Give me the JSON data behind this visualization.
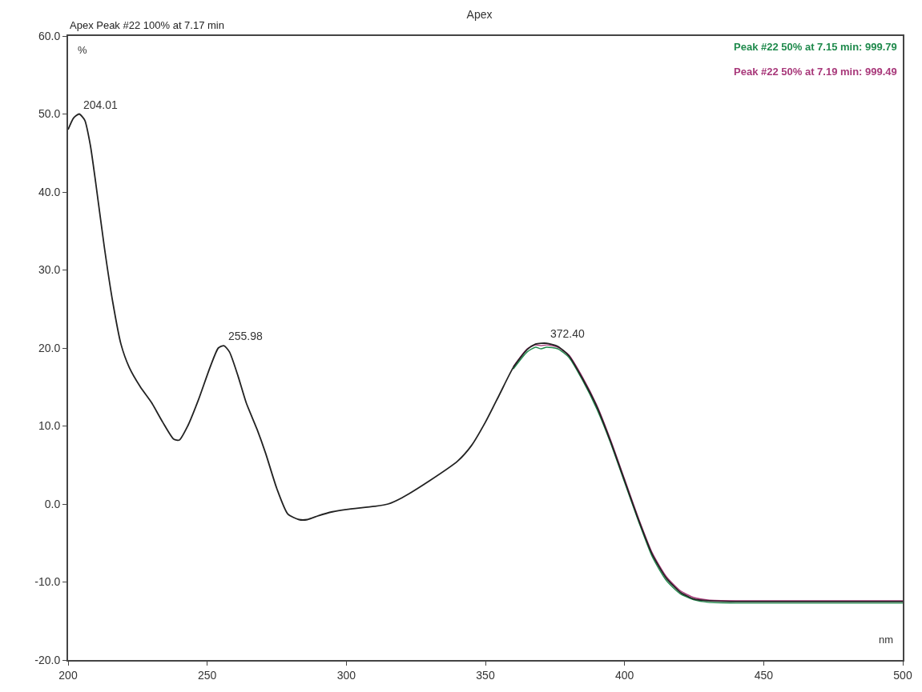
{
  "chart_data": {
    "type": "line",
    "title": "Apex",
    "xlabel": "nm",
    "ylabel": "%",
    "x": [
      200,
      202,
      204,
      206,
      208,
      210,
      213,
      216,
      219,
      222,
      226,
      230,
      234,
      238,
      240,
      243,
      247,
      251,
      254,
      256,
      258,
      261,
      264,
      268,
      271,
      275,
      279,
      283,
      286,
      290,
      295,
      300,
      310,
      315,
      320,
      330,
      340,
      345,
      350,
      355,
      360,
      365,
      368,
      370,
      372,
      376,
      380,
      385,
      390,
      395,
      400,
      405,
      410,
      415,
      420,
      425,
      430,
      440,
      450,
      475,
      500
    ],
    "series": [
      {
        "name": "Apex Peak #22 100% at 7.17 min",
        "color": "#222222",
        "values": [
          48,
          49.5,
          50,
          49.2,
          46,
          41,
          33,
          26,
          20.5,
          17.5,
          15,
          13,
          10.5,
          8.3,
          8.2,
          10,
          13.5,
          17.5,
          20,
          20.3,
          19.5,
          16.5,
          13,
          9.5,
          6.5,
          2,
          -1.3,
          -2,
          -2,
          -1.5,
          -1,
          -0.7,
          -0.3,
          0,
          0.8,
          3,
          5.5,
          7.5,
          10.5,
          14,
          17.5,
          19.8,
          20.5,
          20.6,
          20.6,
          20.2,
          19,
          16,
          12.5,
          8,
          3,
          -2,
          -6.5,
          -9.5,
          -11.3,
          -12.2,
          -12.4,
          -12.5,
          -12.5,
          -12.5,
          -12.5
        ]
      },
      {
        "name": "Peak #22 50% at 7.15 min: 999.79",
        "color": "#1f8a4c",
        "values": [
          null,
          null,
          null,
          null,
          null,
          null,
          null,
          null,
          null,
          null,
          null,
          null,
          null,
          null,
          null,
          null,
          null,
          null,
          null,
          null,
          null,
          null,
          null,
          null,
          null,
          null,
          null,
          null,
          null,
          null,
          null,
          null,
          null,
          null,
          null,
          null,
          null,
          null,
          null,
          null,
          17.3,
          19.5,
          20.1,
          19.9,
          20.1,
          19.9,
          18.8,
          15.8,
          12.2,
          7.8,
          2.8,
          -2.2,
          -6.8,
          -9.8,
          -11.5,
          -12.3,
          -12.6,
          -12.7,
          -12.7,
          -12.7,
          -12.7
        ]
      },
      {
        "name": "Peak #22 50% at 7.19 min: 999.49",
        "color": "#a8387a",
        "values": [
          null,
          null,
          null,
          null,
          null,
          null,
          null,
          null,
          null,
          null,
          null,
          null,
          null,
          null,
          null,
          null,
          null,
          null,
          null,
          null,
          null,
          null,
          null,
          null,
          null,
          null,
          null,
          null,
          null,
          null,
          null,
          null,
          null,
          null,
          null,
          null,
          null,
          null,
          null,
          null,
          17.6,
          19.9,
          20.4,
          20.3,
          20.4,
          20.1,
          19.1,
          16.2,
          12.7,
          8.2,
          3.2,
          -1.8,
          -6.3,
          -9.3,
          -11.1,
          -12.0,
          -12.3,
          -12.4,
          -12.4,
          -12.4,
          -12.4
        ]
      }
    ],
    "annotations": [
      {
        "text": "204.01",
        "x": 204,
        "y": 50
      },
      {
        "text": "255.98",
        "x": 256,
        "y": 20.3
      },
      {
        "text": "372.40",
        "x": 372,
        "y": 20.6
      }
    ],
    "xlim": [
      200,
      500
    ],
    "xticks": [
      200,
      250,
      300,
      350,
      400,
      450,
      500
    ],
    "ylim": [
      -20,
      60
    ],
    "yticks": [
      {
        "value": -20,
        "label": "-20.0"
      },
      {
        "value": -10,
        "label": "-10.0"
      },
      {
        "value": 0,
        "label": "0.0"
      },
      {
        "value": 10,
        "label": "10.0"
      },
      {
        "value": 20,
        "label": "20.0"
      },
      {
        "value": 30,
        "label": "30.0"
      },
      {
        "value": 40,
        "label": "40.0"
      },
      {
        "value": 50,
        "label": "50.0"
      },
      {
        "value": 60,
        "label": "60.0"
      }
    ],
    "legend": false,
    "marker": "none",
    "line_style": "solid"
  }
}
